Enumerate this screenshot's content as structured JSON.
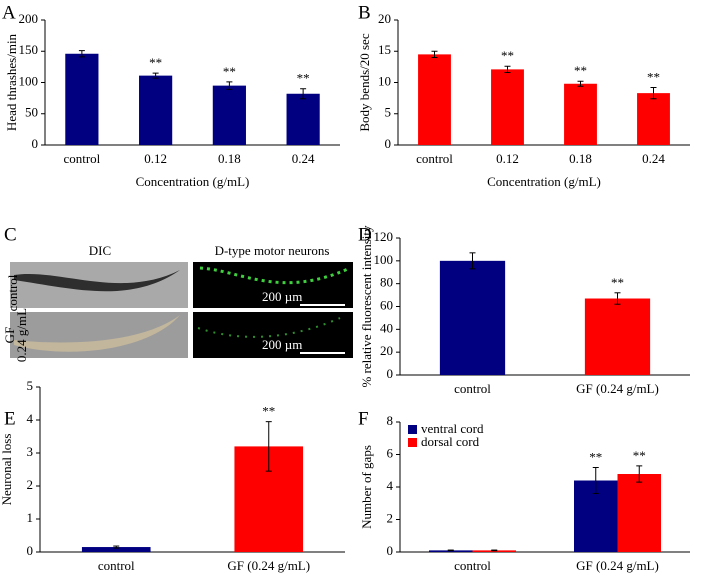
{
  "chart_data": [
    {
      "type": "bar",
      "panel_label": "A",
      "ylabel": "Head thrashes/min",
      "xlabel": "Concentration (g/mL)",
      "categories": [
        "control",
        "0.12",
        "0.18",
        "0.24"
      ],
      "values": [
        146,
        111,
        95,
        82
      ],
      "errors": [
        5,
        4,
        6,
        8
      ],
      "significance": [
        null,
        "**",
        "**",
        "**"
      ],
      "color": "#000080",
      "ylim": [
        0,
        200
      ],
      "yticks": [
        0,
        50,
        100,
        150,
        200
      ]
    },
    {
      "type": "bar",
      "panel_label": "B",
      "ylabel": "Body bends/20 sec",
      "xlabel": "Concentration (g/mL)",
      "categories": [
        "control",
        "0.12",
        "0.18",
        "0.24"
      ],
      "values": [
        14.5,
        12.1,
        9.8,
        8.3
      ],
      "errors": [
        0.5,
        0.5,
        0.4,
        0.9
      ],
      "significance": [
        null,
        "**",
        "**",
        "**"
      ],
      "color": "#ff0000",
      "ylim": [
        0,
        20
      ],
      "yticks": [
        0,
        5,
        10,
        15,
        20
      ]
    },
    {
      "type": "bar",
      "panel_label": "D",
      "ylabel": "% relative fluorescent intensity",
      "categories": [
        "control",
        "GF (0.24 g/mL)"
      ],
      "values": [
        100,
        67
      ],
      "errors": [
        7,
        5
      ],
      "significance": [
        null,
        "**"
      ],
      "colors": [
        "#000080",
        "#ff0000"
      ],
      "ylim": [
        0,
        120
      ],
      "yticks": [
        0,
        20,
        40,
        60,
        80,
        100,
        120
      ]
    },
    {
      "type": "bar",
      "panel_label": "E",
      "ylabel": "Neuronal loss",
      "categories": [
        "control",
        "GF (0.24 g/mL)"
      ],
      "values": [
        0.15,
        3.2
      ],
      "errors": [
        0.03,
        0.75
      ],
      "significance": [
        null,
        "**"
      ],
      "colors": [
        "#000080",
        "#ff0000"
      ],
      "ylim": [
        0,
        5
      ],
      "yticks": [
        0,
        1,
        2,
        3,
        4,
        5
      ]
    },
    {
      "type": "grouped_bar",
      "panel_label": "F",
      "ylabel": "Number of gaps",
      "categories": [
        "control",
        "GF (0.24 g/mL)"
      ],
      "series": [
        {
          "name": "ventral cord",
          "color": "#000080",
          "values": [
            0.1,
            4.4
          ],
          "errors": [
            0.02,
            0.8
          ],
          "significance": [
            null,
            "**"
          ]
        },
        {
          "name": "dorsal cord",
          "color": "#ff0000",
          "values": [
            0.1,
            4.8
          ],
          "errors": [
            0.02,
            0.5
          ],
          "significance": [
            null,
            "**"
          ]
        }
      ],
      "ylim": [
        0,
        8
      ],
      "yticks": [
        0,
        2,
        4,
        6,
        8
      ],
      "legend": "upper left"
    }
  ],
  "image_panel": {
    "panel_label": "C",
    "column_titles": [
      "DIC",
      "D-type motor neurons"
    ],
    "row_labels": [
      [
        "control"
      ],
      [
        "GF",
        "0.24 g/mL"
      ]
    ],
    "scale_bars": [
      "200 µm",
      "200 µm"
    ]
  }
}
